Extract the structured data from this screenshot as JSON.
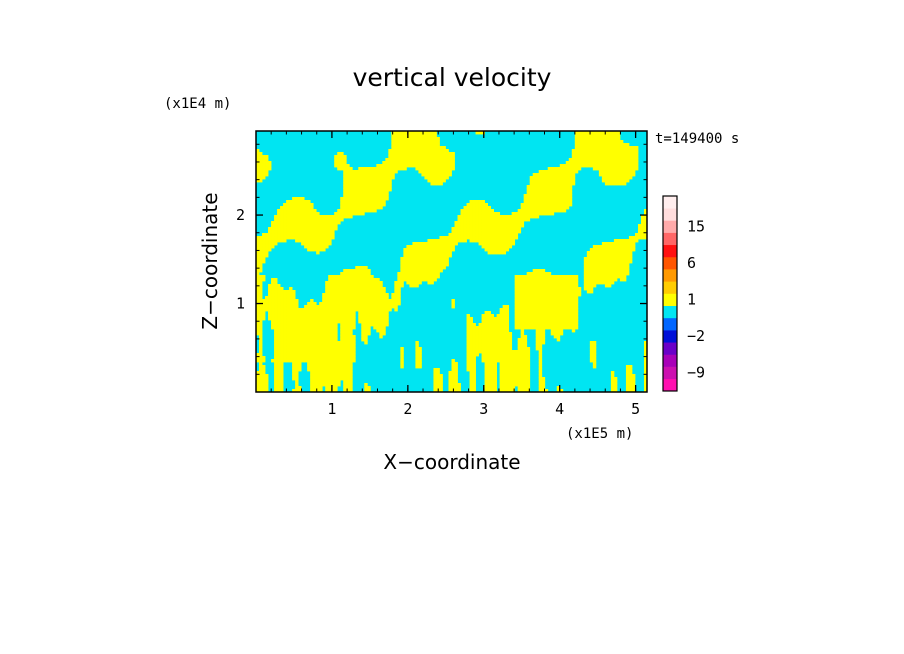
{
  "chart_data": {
    "type": "heatmap",
    "title": "vertical velocity",
    "xlabel": "X−coordinate",
    "ylabel": "Z−coordinate",
    "x_unit": "(x1E5 m)",
    "y_unit": "(x1E4 m)",
    "time_label": "t=149400 s",
    "xlim": [
      0,
      5.15
    ],
    "ylim": [
      0,
      2.95
    ],
    "x_ticks": [
      1,
      2,
      3,
      4,
      5
    ],
    "y_ticks": [
      1,
      2
    ],
    "x_tick_labels": [
      "1",
      "2",
      "3",
      "4",
      "5"
    ],
    "y_tick_labels": [
      "1",
      "2"
    ],
    "field_colors": [
      "#00e5f2",
      "#ffff00"
    ],
    "colorbar": {
      "levels": [
        "-12",
        "-9",
        "-6",
        "-4",
        "-2",
        "-1",
        "0",
        "1",
        "2",
        "4",
        "6",
        "9",
        "12",
        "15",
        "18",
        "21"
      ],
      "labels": [
        "15",
        "6",
        "1",
        "−2",
        "−9"
      ],
      "label_values": [
        15,
        6,
        1,
        -2,
        -9
      ],
      "colors": [
        "#ff10b0",
        "#cc10b0",
        "#a800b8",
        "#6a00c8",
        "#0010d8",
        "#0066ff",
        "#00e5f2",
        "#ffff00",
        "#ffcc00",
        "#ff9900",
        "#ff5500",
        "#ff1111",
        "#ff6666",
        "#ffaaaa",
        "#ffdddd",
        "#ffeeee"
      ]
    }
  }
}
